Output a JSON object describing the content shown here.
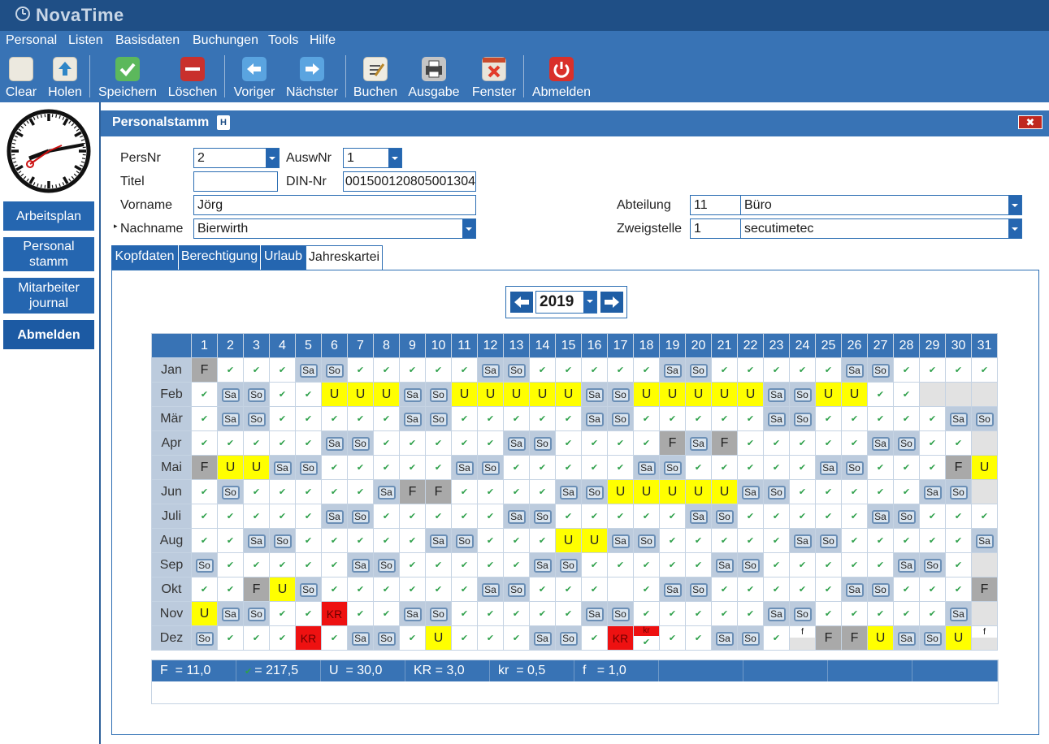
{
  "app": {
    "title": "NovaTime"
  },
  "menu": [
    "Personal",
    "Listen",
    "Basisdaten",
    "Buchungen",
    "Tools",
    "Hilfe"
  ],
  "toolbar": [
    {
      "label": "Clear",
      "icon": "clear-icon"
    },
    {
      "label": "Holen",
      "icon": "fetch-icon"
    },
    {
      "label": "Speichern",
      "icon": "save-icon"
    },
    {
      "label": "Löschen",
      "icon": "delete-icon"
    },
    {
      "label": "Voriger",
      "icon": "arrow-left-icon"
    },
    {
      "label": "Nächster",
      "icon": "arrow-right-icon"
    },
    {
      "label": "Buchen",
      "icon": "book-icon"
    },
    {
      "label": "Ausgabe",
      "icon": "printer-icon"
    },
    {
      "label": "Fenster",
      "icon": "close-window-icon"
    },
    {
      "label": "Abmelden",
      "icon": "power-icon"
    }
  ],
  "sidebar": {
    "items": [
      {
        "label": "Arbeitsplan"
      },
      {
        "label": "Personal\nstamm"
      },
      {
        "label": "Mitarbeiter\njournal"
      },
      {
        "label": "Abmelden"
      }
    ]
  },
  "form": {
    "title": "Personalstamm",
    "badge": "H",
    "close": "✖",
    "persnr": {
      "label": "PersNr",
      "value": "2"
    },
    "auswnr": {
      "label": "AuswNr",
      "value": "1"
    },
    "titel": {
      "label": "Titel",
      "value": ""
    },
    "dinnr": {
      "label": "DIN-Nr",
      "value": "001500120805001304"
    },
    "vorname": {
      "label": "Vorname",
      "value": "Jörg"
    },
    "nachname": {
      "label": "Nachname",
      "value": "Bierwirth"
    },
    "abteilung": {
      "label": "Abteilung",
      "code": "11",
      "name": "Büro"
    },
    "zweigstelle": {
      "label": "Zweigstelle",
      "code": "1",
      "name": "secutimetec"
    }
  },
  "tabs": [
    "Kopfdaten",
    "Berechtigung",
    "Urlaub",
    "Jahreskartei"
  ],
  "calendar": {
    "year": "2019",
    "days": [
      "1",
      "2",
      "3",
      "4",
      "5",
      "6",
      "7",
      "8",
      "9",
      "10",
      "11",
      "12",
      "13",
      "14",
      "15",
      "16",
      "17",
      "18",
      "19",
      "20",
      "21",
      "22",
      "23",
      "24",
      "25",
      "26",
      "27",
      "28",
      "29",
      "30",
      "31"
    ],
    "months": [
      {
        "name": "Jan",
        "cells": [
          "F",
          "ok",
          "ok",
          "ok",
          "Sa",
          "So",
          "ok",
          "ok",
          "ok",
          "ok",
          "ok",
          "Sa",
          "So",
          "ok",
          "ok",
          "ok",
          "ok",
          "ok",
          "Sa",
          "So",
          "ok",
          "ok",
          "ok",
          "ok",
          "ok",
          "Sa",
          "So",
          "ok",
          "ok",
          "ok",
          "ok"
        ]
      },
      {
        "name": "Feb",
        "cells": [
          "ok",
          "Sa",
          "So",
          "ok",
          "ok",
          "U",
          "U",
          "U",
          "Sa",
          "So",
          "U",
          "U",
          "U",
          "U",
          "U",
          "Sa",
          "So",
          "U",
          "U",
          "U",
          "U",
          "U",
          "Sa",
          "So",
          "U",
          "U",
          "ok",
          "ok",
          "-",
          "-",
          "-"
        ]
      },
      {
        "name": "Mär",
        "cells": [
          "ok",
          "Sa",
          "So",
          "ok",
          "ok",
          "ok",
          "ok",
          "ok",
          "Sa",
          "So",
          "ok",
          "ok",
          "ok",
          "ok",
          "ok",
          "Sa",
          "So",
          "ok",
          "ok",
          "ok",
          "ok",
          "ok",
          "Sa",
          "So",
          "ok",
          "ok",
          "ok",
          "ok",
          "ok",
          "Sa",
          "So"
        ]
      },
      {
        "name": "Apr",
        "cells": [
          "ok",
          "ok",
          "ok",
          "ok",
          "ok",
          "Sa",
          "So",
          "ok",
          "ok",
          "ok",
          "ok",
          "ok",
          "Sa",
          "So",
          "ok",
          "ok",
          "ok",
          "ok",
          "F",
          "Sa",
          "F",
          "ok",
          "ok",
          "ok",
          "ok",
          "ok",
          "Sa",
          "So",
          "ok",
          "ok",
          "-"
        ]
      },
      {
        "name": "Mai",
        "cells": [
          "F",
          "U",
          "U",
          "Sa",
          "So",
          "ok",
          "ok",
          "ok",
          "ok",
          "ok",
          "Sa",
          "So",
          "ok",
          "ok",
          "ok",
          "ok",
          "ok",
          "Sa",
          "So",
          "ok",
          "ok",
          "ok",
          "ok",
          "ok",
          "Sa",
          "So",
          "ok",
          "ok",
          "ok",
          "F",
          "U"
        ]
      },
      {
        "name": "Jun",
        "cells": [
          "ok",
          "So",
          "ok",
          "ok",
          "ok",
          "ok",
          "ok",
          "Sa",
          "F",
          "F",
          "ok",
          "ok",
          "ok",
          "ok",
          "Sa",
          "So",
          "U",
          "U",
          "U",
          "U",
          "U",
          "Sa",
          "So",
          "ok",
          "ok",
          "ok",
          "ok",
          "ok",
          "Sa",
          "So",
          "-"
        ]
      },
      {
        "name": "Juli",
        "cells": [
          "ok",
          "ok",
          "ok",
          "ok",
          "ok",
          "Sa",
          "So",
          "ok",
          "ok",
          "ok",
          "ok",
          "ok",
          "Sa",
          "So",
          "ok",
          "ok",
          "ok",
          "ok",
          "ok",
          "Sa",
          "So",
          "ok",
          "ok",
          "ok",
          "ok",
          "ok",
          "Sa",
          "So",
          "ok",
          "ok",
          "ok"
        ]
      },
      {
        "name": "Aug",
        "cells": [
          "ok",
          "ok",
          "Sa",
          "So",
          "ok",
          "ok",
          "ok",
          "ok",
          "ok",
          "Sa",
          "So",
          "ok",
          "ok",
          "ok",
          "U",
          "U",
          "Sa",
          "So",
          "ok",
          "ok",
          "ok",
          "ok",
          "ok",
          "Sa",
          "So",
          "ok",
          "ok",
          "ok",
          "ok",
          "ok",
          "Sa"
        ]
      },
      {
        "name": "Sep",
        "cells": [
          "So",
          "ok",
          "ok",
          "ok",
          "ok",
          "ok",
          "Sa",
          "So",
          "ok",
          "ok",
          "ok",
          "ok",
          "ok",
          "Sa",
          "So",
          "ok",
          "ok",
          "ok",
          "ok",
          "ok",
          "Sa",
          "So",
          "ok",
          "ok",
          "ok",
          "ok",
          "ok",
          "Sa",
          "So",
          "ok",
          "-"
        ]
      },
      {
        "name": "Okt",
        "cells": [
          "ok",
          "ok",
          "F",
          "U",
          "So",
          "ok",
          "ok",
          "ok",
          "ok",
          "ok",
          "ok",
          "Sa",
          "So",
          "ok",
          "ok",
          "ok",
          "",
          "ok",
          "Sa",
          "So",
          "ok",
          "ok",
          "ok",
          "ok",
          "ok",
          "Sa",
          "So",
          "ok",
          "ok",
          "ok",
          "F"
        ]
      },
      {
        "name": "Nov",
        "cells": [
          "U",
          "Sa",
          "So",
          "ok",
          "ok",
          "KR",
          "ok",
          "ok",
          "Sa",
          "So",
          "ok",
          "ok",
          "ok",
          "ok",
          "ok",
          "Sa",
          "So",
          "ok",
          "ok",
          "ok",
          "ok",
          "ok",
          "Sa",
          "So",
          "ok",
          "ok",
          "ok",
          "ok",
          "ok",
          "Sa",
          "-"
        ]
      },
      {
        "name": "Dez",
        "cells": [
          "So",
          "ok",
          "ok",
          "ok",
          "KR",
          "ok",
          "Sa",
          "So",
          "ok",
          "U",
          "ok",
          "ok",
          "ok",
          "Sa",
          "So",
          "ok",
          "KR",
          "kr",
          "ok",
          "ok",
          "Sa",
          "So",
          "ok",
          "f",
          "F",
          "F",
          "U",
          "Sa",
          "So",
          "U",
          "f"
        ]
      }
    ]
  },
  "summary": [
    {
      "label": "F",
      "text": "F  = 11,0"
    },
    {
      "label": "ok",
      "text": "= 217,5"
    },
    {
      "label": "U",
      "text": "U  = 30,0"
    },
    {
      "label": "KR",
      "text": "KR = 3,0"
    },
    {
      "label": "kr",
      "text": "kr  = 0,5"
    },
    {
      "label": "f",
      "text": "f   = 1,0"
    },
    {
      "label": "",
      "text": ""
    },
    {
      "label": "",
      "text": ""
    },
    {
      "label": "",
      "text": ""
    },
    {
      "label": "",
      "text": ""
    }
  ],
  "colors": {
    "accent": "#3873b5",
    "titlebar": "#1f4f86",
    "holiday": "#a9a9a9",
    "vacation": "#ffff00",
    "sick": "#ee1111",
    "present": "#2ea04a"
  }
}
